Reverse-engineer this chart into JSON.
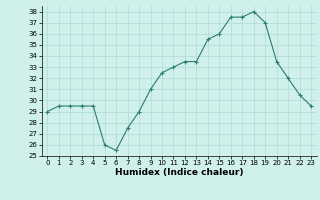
{
  "x": [
    0,
    1,
    2,
    3,
    4,
    5,
    6,
    7,
    8,
    9,
    10,
    11,
    12,
    13,
    14,
    15,
    16,
    17,
    18,
    19,
    20,
    21,
    22,
    23
  ],
  "y": [
    29,
    29.5,
    29.5,
    29.5,
    29.5,
    26,
    25.5,
    27.5,
    29,
    31,
    32.5,
    33,
    33.5,
    33.5,
    35.5,
    36,
    37.5,
    37.5,
    38,
    37,
    33.5,
    32,
    30.5,
    29.5
  ],
  "xlabel": "Humidex (Indice chaleur)",
  "ylim": [
    25,
    38.5
  ],
  "yticks": [
    25,
    26,
    27,
    28,
    29,
    30,
    31,
    32,
    33,
    34,
    35,
    36,
    37,
    38
  ],
  "xticks": [
    0,
    1,
    2,
    3,
    4,
    5,
    6,
    7,
    8,
    9,
    10,
    11,
    12,
    13,
    14,
    15,
    16,
    17,
    18,
    19,
    20,
    21,
    22,
    23
  ],
  "line_color": "#2e7d6e",
  "bg_color": "#cff0eb",
  "grid_color": "#b0dbd5",
  "marker": "+"
}
